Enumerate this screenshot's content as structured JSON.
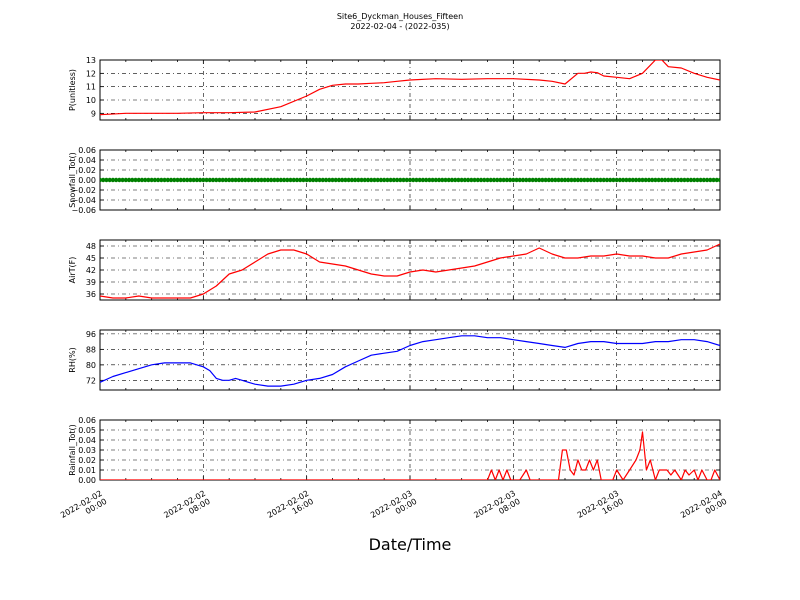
{
  "figure": {
    "title": "Site6_Dyckman_Houses_Fifteen",
    "subtitle": "2022-02-04 - (2022-035)",
    "xlabel": "Date/Time"
  },
  "chart_data": [
    {
      "type": "line",
      "ylabel": "P(unitless)",
      "ylim": [
        8.5,
        13
      ],
      "yticks": [
        "9",
        "10",
        "11",
        "12",
        "13"
      ],
      "grid": true,
      "series": [
        {
          "color": "#ff0000",
          "x": [
            0,
            2,
            4,
            6,
            8,
            10,
            12,
            14,
            16,
            17,
            18,
            19,
            20,
            21,
            22,
            23,
            24,
            26,
            28,
            30,
            32,
            34,
            35,
            36,
            37,
            37.5,
            38,
            38.5,
            39,
            40,
            41,
            42,
            43,
            43.5,
            44,
            45,
            46,
            47,
            48
          ],
          "y": [
            8.9,
            9.0,
            9.0,
            9.0,
            9.05,
            9.05,
            9.1,
            9.5,
            10.3,
            10.8,
            11.1,
            11.2,
            11.2,
            11.25,
            11.3,
            11.4,
            11.5,
            11.6,
            11.55,
            11.6,
            11.6,
            11.5,
            11.4,
            11.2,
            12.0,
            12.0,
            12.1,
            12.05,
            11.8,
            11.7,
            11.6,
            12.0,
            13.0,
            13.0,
            12.5,
            12.4,
            12.0,
            11.7,
            11.5
          ]
        }
      ]
    },
    {
      "type": "scatter",
      "ylabel": "Snowfall_Tot()",
      "ylim": [
        -0.06,
        0.06
      ],
      "yticks": [
        "−0.06",
        "−0.04",
        "−0.02",
        "0.00",
        "0.02",
        "0.04",
        "0.06"
      ],
      "grid": true,
      "series": [
        {
          "color": "#008000",
          "x_range": [
            0,
            48
          ],
          "step": 0.25,
          "value": 0
        }
      ]
    },
    {
      "type": "line",
      "ylabel": "AirT(F)",
      "ylim": [
        34.5,
        49.5
      ],
      "yticks": [
        "36",
        "39",
        "42",
        "45",
        "48"
      ],
      "grid": true,
      "series": [
        {
          "color": "#ff0000",
          "x": [
            0,
            1,
            2,
            3,
            4,
            5,
            6,
            7,
            7.5,
            8,
            9,
            10,
            11,
            12,
            13,
            14,
            15,
            16,
            17,
            18,
            19,
            20,
            21,
            22,
            23,
            24,
            25,
            26,
            27,
            28,
            29,
            30,
            31,
            32,
            33,
            34,
            35,
            35.5,
            36,
            37,
            38,
            39,
            40,
            41,
            42,
            43,
            44,
            45,
            46,
            47,
            48
          ],
          "y": [
            35.5,
            35,
            35,
            35.5,
            35,
            35,
            35,
            35,
            35.5,
            36,
            38,
            41,
            42,
            44,
            46,
            47,
            47,
            46,
            44,
            43.5,
            43,
            42,
            41,
            40.5,
            40.5,
            41.5,
            42,
            41.5,
            42,
            42.5,
            43,
            44,
            45,
            45.5,
            46,
            47.5,
            46,
            45.5,
            45,
            45,
            45.5,
            45.5,
            46,
            45.5,
            45.5,
            45,
            45,
            46,
            46.5,
            47,
            48.5
          ]
        }
      ]
    },
    {
      "type": "line",
      "ylabel": "RH(%)",
      "ylim": [
        67,
        98
      ],
      "yticks": [
        "72",
        "80",
        "88",
        "96"
      ],
      "grid": true,
      "series": [
        {
          "color": "#0000ff",
          "x": [
            0,
            1,
            2,
            3,
            4,
            5,
            6,
            7,
            8,
            8.5,
            9,
            9.5,
            10,
            10.5,
            11,
            11.5,
            12,
            13,
            14,
            15,
            16,
            17,
            18,
            19,
            20,
            21,
            22,
            23,
            24,
            25,
            26,
            27,
            28,
            29,
            30,
            31,
            32,
            33,
            34,
            35,
            36,
            37,
            38,
            39,
            40,
            41,
            42,
            43,
            44,
            45,
            46,
            47,
            48
          ],
          "y": [
            71,
            74,
            76,
            78,
            80,
            81,
            81,
            81,
            79,
            77,
            73,
            72,
            72,
            73,
            72,
            71,
            70,
            69,
            69,
            70,
            72,
            73,
            75,
            79,
            82,
            85,
            86,
            87,
            90,
            92,
            93,
            94,
            95,
            95,
            94,
            94,
            93,
            92,
            91,
            90,
            89,
            91,
            92,
            92,
            91,
            91,
            91,
            92,
            92,
            93,
            93,
            92,
            90
          ]
        }
      ]
    },
    {
      "type": "line",
      "ylabel": "Rainfall_Tot()",
      "ylim": [
        0,
        0.06
      ],
      "yticks": [
        "0.00",
        "0.01",
        "0.02",
        "0.03",
        "0.04",
        "0.05",
        "0.06"
      ],
      "grid": true,
      "series": [
        {
          "color": "#ff0000",
          "x": [
            0,
            30,
            30.3,
            30.6,
            30.9,
            31.2,
            31.5,
            31.8,
            32,
            32.5,
            33,
            33.3,
            33.6,
            34,
            35.5,
            35.8,
            36.1,
            36.4,
            36.7,
            37,
            37.3,
            37.6,
            37.9,
            38.2,
            38.5,
            38.8,
            39.1,
            39.4,
            39.7,
            40,
            40.5,
            41,
            41.5,
            41.8,
            42,
            42.3,
            42.6,
            43,
            43.3,
            43.6,
            43.9,
            44.2,
            44.5,
            45,
            45.3,
            45.6,
            46,
            46.3,
            46.6,
            47,
            47.3,
            47.6,
            48
          ],
          "y": [
            0,
            0,
            0.01,
            0,
            0.01,
            0,
            0.01,
            0,
            0,
            0,
            0.01,
            0,
            0,
            0,
            0,
            0.03,
            0.03,
            0.01,
            0.005,
            0.02,
            0.01,
            0.01,
            0.02,
            0.01,
            0.02,
            0,
            0,
            0,
            0,
            0.01,
            0,
            0.01,
            0.02,
            0.03,
            0.048,
            0.01,
            0.02,
            0,
            0.01,
            0.01,
            0.01,
            0.005,
            0.01,
            0,
            0.01,
            0.005,
            0.01,
            0,
            0.01,
            0,
            0,
            0.01,
            0
          ]
        }
      ]
    }
  ],
  "xaxis": {
    "range": [
      0,
      48
    ],
    "tick_values": [
      0,
      8,
      16,
      24,
      32,
      40,
      48
    ],
    "tick_labels": [
      [
        "2022-02-02",
        "00:00"
      ],
      [
        "2022-02-02",
        "08:00"
      ],
      [
        "2022-02-02",
        "16:00"
      ],
      [
        "2022-02-03",
        "00:00"
      ],
      [
        "2022-02-03",
        "08:00"
      ],
      [
        "2022-02-03",
        "16:00"
      ],
      [
        "2022-02-04",
        "00:00"
      ]
    ]
  }
}
